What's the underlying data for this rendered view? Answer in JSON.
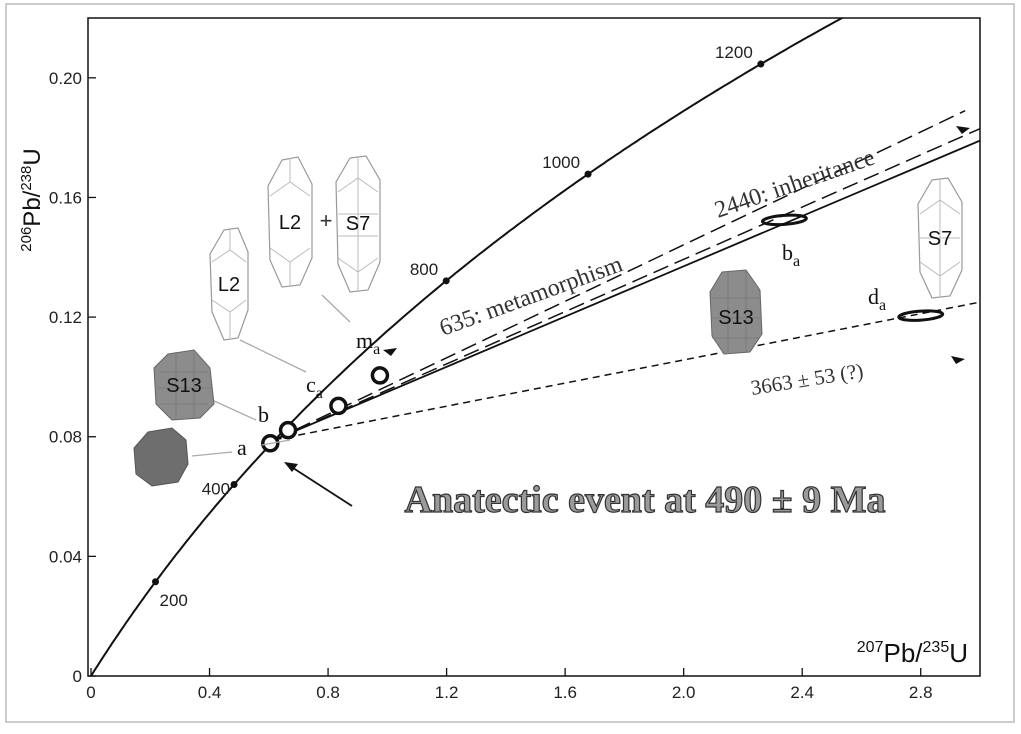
{
  "chart_data": {
    "type": "scatter",
    "title": "Anatectic event at 490 ± 9 Ma",
    "xlabel": {
      "pre": "207",
      "main": "Pb/",
      "pre2": "235",
      "main2": "U"
    },
    "ylabel": {
      "pre": "206",
      "main": "Pb/",
      "pre2": "238",
      "main2": "U"
    },
    "xlim": [
      0,
      3.0
    ],
    "ylim": [
      0,
      0.22
    ],
    "x_ticks": [
      {
        "v": 0,
        "label": "0"
      },
      {
        "v": 0.4,
        "label": "0.4"
      },
      {
        "v": 0.8,
        "label": "0.8"
      },
      {
        "v": 1.2,
        "label": "1.2"
      },
      {
        "v": 1.6,
        "label": "1.6"
      },
      {
        "v": 2.0,
        "label": "2.0"
      },
      {
        "v": 2.4,
        "label": "2.4"
      },
      {
        "v": 2.8,
        "label": "2.8"
      }
    ],
    "y_ticks": [
      {
        "v": 0,
        "label": "0"
      },
      {
        "v": 0.04,
        "label": "0.04"
      },
      {
        "v": 0.08,
        "label": "0.08"
      },
      {
        "v": 0.12,
        "label": "0.12"
      },
      {
        "v": 0.16,
        "label": "0.16"
      },
      {
        "v": 0.2,
        "label": "0.20"
      }
    ],
    "concordia_ages": [
      {
        "age": 200,
        "label": "200"
      },
      {
        "age": 400,
        "label": "400"
      },
      {
        "age": 800,
        "label": "800"
      },
      {
        "age": 1000,
        "label": "1000"
      },
      {
        "age": 1200,
        "label": "1200"
      }
    ],
    "discordia_lines": [
      {
        "label": "635: metamorphism",
        "style": "dashed",
        "from": [
          0.62,
          0.079
        ],
        "to": [
          2.95,
          0.189
        ]
      },
      {
        "label": "2440: inheritance",
        "style": "dashed",
        "from": [
          0.62,
          0.079
        ],
        "to": [
          3.0,
          0.183
        ]
      },
      {
        "label": "",
        "style": "solid",
        "from": [
          0.62,
          0.079
        ],
        "to": [
          3.0,
          0.179
        ]
      },
      {
        "label": "3663 ± 53 (?)",
        "style": "short-dashed",
        "from": [
          0.62,
          0.079
        ],
        "to": [
          3.0,
          0.125
        ]
      }
    ],
    "points": [
      {
        "label": "a",
        "x": 0.605,
        "y": 0.0778,
        "kind": "ring"
      },
      {
        "label": "b",
        "x": 0.665,
        "y": 0.0822,
        "kind": "ring"
      },
      {
        "label": "",
        "x": 0.835,
        "y": 0.0903,
        "kind": "ring"
      },
      {
        "label": "",
        "x": 0.975,
        "y": 0.1005,
        "kind": "ring"
      },
      {
        "label": "b",
        "sub": "a",
        "x": 2.34,
        "y": 0.1525,
        "kind": "ellipse"
      },
      {
        "label": "d",
        "sub": "a",
        "x": 2.8,
        "y": 0.1205,
        "kind": "ellipse"
      }
    ],
    "point_labels": [
      {
        "label": "c",
        "sub": "a"
      },
      {
        "label": "m",
        "sub": "a"
      }
    ],
    "grain_labels": [
      "L2",
      "L2",
      "S7",
      "S13",
      "S13",
      "S7"
    ],
    "plus_sign": "+",
    "colors": {
      "line": "#111111",
      "grain_fill": "#8c8c8c",
      "grain_dark": "#6e6e6e",
      "title_fill": "#9a9a9a"
    }
  }
}
